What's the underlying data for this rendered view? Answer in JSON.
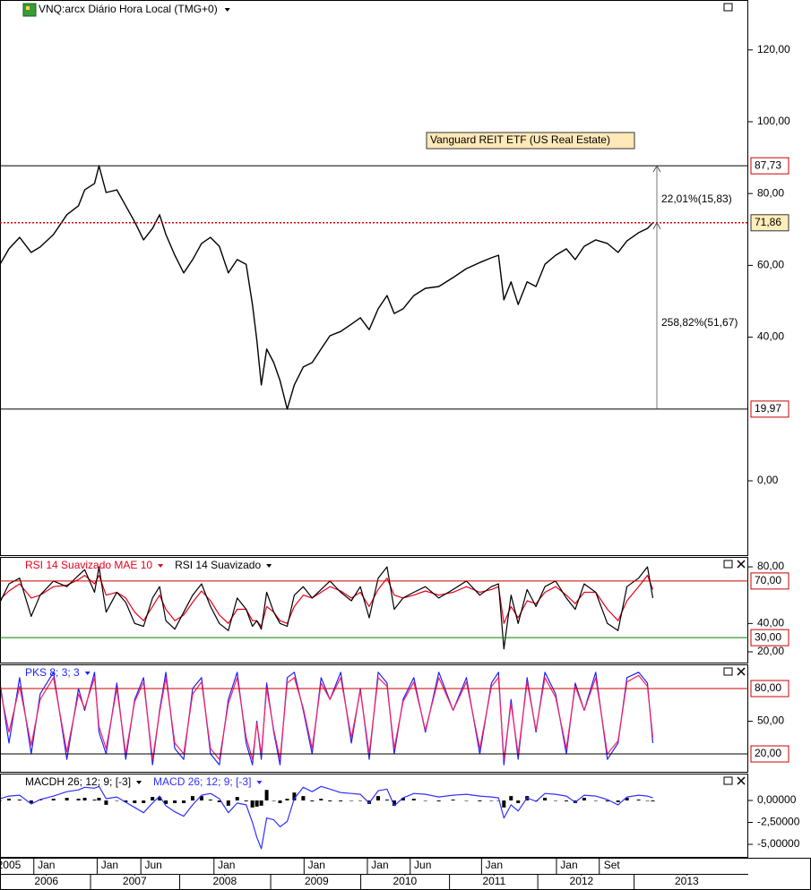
{
  "chart_data": [
    {
      "type": "line",
      "title": "VNQ:arcx Diário Hora Local (TMG+0)",
      "annotations": [
        "22,01%(15,83)",
        "258,82%(51,67)",
        "Vanguard REIT ETF  (US Real Estate)"
      ],
      "xlim": [
        2005.97,
        2014.36
      ],
      "ylim": [
        -20.7,
        133.9
      ],
      "yticks": [
        {
          "value": 0,
          "label": "0,00"
        },
        {
          "value": 40,
          "label": "40,00"
        },
        {
          "value": 60,
          "label": "60,00"
        },
        {
          "value": 80,
          "label": "80,00"
        },
        {
          "value": 100,
          "label": "100,00"
        },
        {
          "value": 120,
          "label": "120,00"
        }
      ],
      "levels": [
        {
          "value": 87.73,
          "label": "87,73",
          "color": "#000000",
          "box": "#cc0000",
          "fill": "#ffffff"
        },
        {
          "value": 71.86,
          "label": "71,86",
          "color": "#dd0000",
          "box": "#333333",
          "fill": "#ffeebb",
          "dash": true
        },
        {
          "value": 19.97,
          "label": "19,97",
          "color": "#000000",
          "box": "#cc0000",
          "fill": "#ffffff"
        }
      ],
      "x": [
        2005.97,
        2006.07,
        2006.19,
        2006.32,
        2006.42,
        2006.57,
        2006.72,
        2006.85,
        2006.92,
        2007.03,
        2007.08,
        2007.16,
        2007.28,
        2007.38,
        2007.48,
        2007.58,
        2007.68,
        2007.76,
        2007.83,
        2007.93,
        2008.03,
        2008.13,
        2008.23,
        2008.33,
        2008.43,
        2008.53,
        2008.63,
        2008.73,
        2008.8,
        2008.85,
        2008.9,
        2008.96,
        2009.04,
        2009.11,
        2009.19,
        2009.27,
        2009.37,
        2009.47,
        2009.57,
        2009.67,
        2009.79,
        2009.91,
        2010.01,
        2010.11,
        2010.21,
        2010.31,
        2010.39,
        2010.49,
        2010.61,
        2010.74,
        2010.89,
        2011.05,
        2011.2,
        2011.35,
        2011.48,
        2011.56,
        2011.62,
        2011.7,
        2011.78,
        2011.88,
        2011.98,
        2012.08,
        2012.2,
        2012.32,
        2012.42,
        2012.52,
        2012.65,
        2012.78,
        2012.9,
        2013.0,
        2013.13,
        2013.23,
        2013.29
      ],
      "series": [
        {
          "color": "#000000",
          "values": [
            60.3,
            64.6,
            67.8,
            63.6,
            65.1,
            68.6,
            74.1,
            76.6,
            81.0,
            82.8,
            87.73,
            80.3,
            81.0,
            76.6,
            72.1,
            67.1,
            70.3,
            74.1,
            68.6,
            62.8,
            57.9,
            61.6,
            66.1,
            67.8,
            65.3,
            57.9,
            61.6,
            60.3,
            49.1,
            39.2,
            26.7,
            36.7,
            32.9,
            27.9,
            19.97,
            26.7,
            31.7,
            32.9,
            36.7,
            40.4,
            41.6,
            43.6,
            45.4,
            42.1,
            47.9,
            51.6,
            46.6,
            47.9,
            51.6,
            53.6,
            54.1,
            56.6,
            59.1,
            60.8,
            62.1,
            62.8,
            50.4,
            55.4,
            49.1,
            55.4,
            54.1,
            60.3,
            62.8,
            64.6,
            61.6,
            65.3,
            67.1,
            66.1,
            63.6,
            66.8,
            69.1,
            70.3,
            71.86
          ]
        }
      ]
    },
    {
      "type": "line",
      "xlim": [
        2005.97,
        2014.36
      ],
      "ylim": [
        12.4,
        87.0
      ],
      "yticks": [
        {
          "value": 20,
          "label": "20,00"
        },
        {
          "value": 40,
          "label": "40,00"
        },
        {
          "value": 80,
          "label": "80,00"
        }
      ],
      "levels": [
        {
          "value": 70,
          "label": "70,00",
          "color": "#cc0000",
          "box": "#cc0000",
          "fill": "#ffffff"
        },
        {
          "value": 30,
          "label": "30,00",
          "color": "#008000",
          "box": "#cc0000",
          "fill": "#ffffff"
        }
      ],
      "x": [
        2005.97,
        2006.07,
        2006.19,
        2006.32,
        2006.42,
        2006.57,
        2006.72,
        2006.85,
        2006.92,
        2007.03,
        2007.08,
        2007.16,
        2007.28,
        2007.38,
        2007.48,
        2007.58,
        2007.68,
        2007.76,
        2007.83,
        2007.93,
        2008.03,
        2008.13,
        2008.23,
        2008.33,
        2008.43,
        2008.53,
        2008.63,
        2008.73,
        2008.8,
        2008.85,
        2008.9,
        2008.96,
        2009.04,
        2009.11,
        2009.19,
        2009.27,
        2009.37,
        2009.47,
        2009.57,
        2009.67,
        2009.79,
        2009.91,
        2010.01,
        2010.11,
        2010.21,
        2010.31,
        2010.39,
        2010.49,
        2010.61,
        2010.74,
        2010.89,
        2011.05,
        2011.2,
        2011.35,
        2011.48,
        2011.56,
        2011.62,
        2011.7,
        2011.78,
        2011.88,
        2011.98,
        2012.08,
        2012.2,
        2012.32,
        2012.42,
        2012.52,
        2012.65,
        2012.78,
        2012.9,
        2013.0,
        2013.13,
        2013.23,
        2013.29
      ],
      "series": [
        {
          "name": "RSI 14 Suavizado MAE 10",
          "color": "#e8001c",
          "values": [
            57,
            63,
            68,
            58,
            60,
            66,
            67,
            71,
            74,
            68,
            74,
            60,
            62,
            58,
            48,
            42,
            52,
            60,
            50,
            42,
            46,
            55,
            63,
            56,
            46,
            40,
            50,
            50,
            42,
            42,
            38,
            52,
            48,
            42,
            40,
            52,
            60,
            58,
            62,
            66,
            63,
            58,
            62,
            52,
            64,
            72,
            60,
            58,
            60,
            63,
            60,
            62,
            66,
            62,
            64,
            66,
            40,
            52,
            44,
            56,
            54,
            62,
            66,
            60,
            54,
            62,
            62,
            50,
            42,
            56,
            66,
            74,
            64
          ]
        },
        {
          "name": "RSI 14 Suavizado",
          "color": "#000000",
          "values": [
            55,
            68,
            72,
            45,
            60,
            70,
            66,
            74,
            78,
            62,
            80,
            48,
            62,
            55,
            40,
            38,
            58,
            66,
            42,
            36,
            48,
            60,
            68,
            52,
            40,
            35,
            58,
            50,
            38,
            42,
            36,
            62,
            48,
            40,
            38,
            60,
            66,
            58,
            64,
            70,
            62,
            56,
            66,
            44,
            72,
            80,
            50,
            58,
            62,
            66,
            58,
            64,
            70,
            60,
            66,
            68,
            22,
            60,
            40,
            64,
            52,
            66,
            70,
            58,
            50,
            68,
            62,
            40,
            35,
            66,
            72,
            80,
            58
          ]
        }
      ]
    },
    {
      "type": "line",
      "xlim": [
        2005.97,
        2014.36
      ],
      "ylim": [
        3.6,
        102.2
      ],
      "yticks": [
        {
          "value": 50,
          "label": "50,00"
        }
      ],
      "levels": [
        {
          "value": 80,
          "label": "80,00",
          "color": "#cc0000",
          "box": "#cc0000",
          "fill": "#ffffff"
        },
        {
          "value": 20,
          "label": "20,00",
          "color": "#000000",
          "box": "#cc0000",
          "fill": "#ffffff"
        }
      ],
      "x": [
        2005.97,
        2006.07,
        2006.19,
        2006.32,
        2006.42,
        2006.57,
        2006.72,
        2006.85,
        2006.92,
        2007.03,
        2007.08,
        2007.16,
        2007.28,
        2007.38,
        2007.48,
        2007.58,
        2007.68,
        2007.76,
        2007.83,
        2007.93,
        2008.03,
        2008.13,
        2008.23,
        2008.33,
        2008.43,
        2008.53,
        2008.63,
        2008.73,
        2008.8,
        2008.85,
        2008.9,
        2008.96,
        2009.04,
        2009.11,
        2009.19,
        2009.27,
        2009.37,
        2009.47,
        2009.57,
        2009.67,
        2009.79,
        2009.91,
        2010.01,
        2010.11,
        2010.21,
        2010.31,
        2010.39,
        2010.49,
        2010.61,
        2010.74,
        2010.89,
        2011.05,
        2011.2,
        2011.35,
        2011.48,
        2011.56,
        2011.62,
        2011.7,
        2011.78,
        2011.88,
        2011.98,
        2012.08,
        2012.2,
        2012.32,
        2012.42,
        2012.52,
        2012.65,
        2012.78,
        2012.9,
        2013.0,
        2013.13,
        2013.23,
        2013.29
      ],
      "series": [
        {
          "name": "PKS 8; 3; 3",
          "color": "#2020ff",
          "values": [
            85,
            30,
            90,
            20,
            75,
            95,
            15,
            80,
            60,
            95,
            40,
            20,
            85,
            15,
            70,
            90,
            10,
            60,
            95,
            25,
            15,
            80,
            90,
            20,
            10,
            70,
            95,
            30,
            10,
            50,
            15,
            85,
            40,
            10,
            90,
            95,
            60,
            20,
            90,
            70,
            95,
            30,
            80,
            15,
            95,
            85,
            20,
            70,
            90,
            40,
            95,
            60,
            90,
            20,
            85,
            95,
            10,
            70,
            15,
            90,
            40,
            95,
            75,
            20,
            85,
            60,
            95,
            15,
            30,
            90,
            95,
            85,
            30
          ]
        },
        {
          "color": "#ff2060",
          "values": [
            80,
            40,
            82,
            28,
            70,
            90,
            22,
            75,
            62,
            90,
            45,
            25,
            80,
            20,
            68,
            86,
            15,
            58,
            90,
            30,
            20,
            75,
            86,
            25,
            15,
            66,
            90,
            35,
            15,
            48,
            20,
            80,
            42,
            15,
            85,
            90,
            62,
            25,
            85,
            70,
            90,
            35,
            78,
            20,
            90,
            82,
            25,
            68,
            86,
            42,
            90,
            60,
            86,
            25,
            82,
            90,
            15,
            66,
            20,
            86,
            42,
            90,
            72,
            25,
            82,
            60,
            90,
            20,
            32,
            86,
            92,
            82,
            35
          ]
        }
      ]
    },
    {
      "type": "line",
      "xlim": [
        2005.97,
        2014.36
      ],
      "ylim": [
        -6.53,
        3.06
      ],
      "yticks": [
        {
          "value": -5,
          "label": "-5,00000"
        },
        {
          "value": -2.5,
          "label": "-2,50000"
        },
        {
          "value": 0,
          "label": "0,00000"
        }
      ],
      "xticks": [
        {
          "value": 2006.07,
          "label": "2005"
        },
        {
          "value": 2006.49,
          "label": "Jan"
        },
        {
          "value": 2007.2,
          "label": "Jan"
        },
        {
          "value": 2007.69,
          "label": "Jun"
        },
        {
          "value": 2008.51,
          "label": "Jan"
        },
        {
          "value": 2009.52,
          "label": "Jan"
        },
        {
          "value": 2010.23,
          "label": "Jan"
        },
        {
          "value": 2010.71,
          "label": "Jun"
        },
        {
          "value": 2011.51,
          "label": "Jan"
        },
        {
          "value": 2012.35,
          "label": "Jan"
        },
        {
          "value": 2012.83,
          "label": "Set"
        }
      ],
      "year_ticks": [
        {
          "value": 2006.49,
          "label": "2006"
        },
        {
          "value": 2007.48,
          "label": "2007"
        },
        {
          "value": 2008.49,
          "label": "2008"
        },
        {
          "value": 2009.52,
          "label": "2009"
        },
        {
          "value": 2010.51,
          "label": "2010"
        },
        {
          "value": 2011.51,
          "label": "2011"
        },
        {
          "value": 2012.49,
          "label": "2012"
        },
        {
          "value": 2013.67,
          "label": "2013"
        }
      ],
      "x": [
        2005.97,
        2006.07,
        2006.19,
        2006.32,
        2006.42,
        2006.57,
        2006.72,
        2006.85,
        2006.92,
        2007.03,
        2007.08,
        2007.16,
        2007.28,
        2007.38,
        2007.48,
        2007.58,
        2007.68,
        2007.76,
        2007.83,
        2007.93,
        2008.03,
        2008.13,
        2008.23,
        2008.33,
        2008.43,
        2008.53,
        2008.63,
        2008.73,
        2008.8,
        2008.85,
        2008.9,
        2008.96,
        2009.04,
        2009.11,
        2009.19,
        2009.27,
        2009.37,
        2009.47,
        2009.57,
        2009.67,
        2009.79,
        2009.91,
        2010.01,
        2010.11,
        2010.21,
        2010.31,
        2010.39,
        2010.49,
        2010.61,
        2010.74,
        2010.89,
        2011.05,
        2011.2,
        2011.35,
        2011.48,
        2011.56,
        2011.62,
        2011.7,
        2011.78,
        2011.88,
        2011.98,
        2012.08,
        2012.2,
        2012.32,
        2012.42,
        2012.52,
        2012.65,
        2012.78,
        2012.9,
        2013.0,
        2013.13,
        2013.23,
        2013.29
      ],
      "series": [
        {
          "name": "MACDH 26; 12; 9; [-3]",
          "color": "#000000",
          "type": "bar",
          "values": [
            0.0,
            0.2,
            0.1,
            -0.3,
            0.1,
            0.2,
            0.3,
            0.2,
            0.3,
            0.1,
            0.3,
            -0.5,
            0.0,
            -0.2,
            -0.3,
            -0.3,
            0.4,
            0.4,
            -0.4,
            -0.3,
            -0.3,
            0.5,
            0.5,
            0.1,
            -0.2,
            -0.6,
            0.4,
            -0.1,
            -0.8,
            -0.7,
            -0.6,
            1.2,
            0.0,
            -0.3,
            0.2,
            0.9,
            0.5,
            -0.1,
            0.2,
            -0.1,
            -0.1,
            0.0,
            0.0,
            -0.4,
            0.5,
            0.1,
            -0.6,
            0.3,
            0.2,
            0.0,
            -0.1,
            0.1,
            0.0,
            -0.1,
            0.0,
            0.0,
            -0.8,
            0.5,
            -0.3,
            0.5,
            -0.1,
            0.3,
            0.0,
            -0.1,
            -0.3,
            0.3,
            0.0,
            -0.1,
            -0.2,
            0.3,
            0.1,
            0.0,
            -0.1
          ]
        },
        {
          "name": "MACD 26; 12; 9; [-3]",
          "color": "#3030ff",
          "values": [
            0.2,
            0.5,
            0.6,
            -0.4,
            0.1,
            0.5,
            1.0,
            1.2,
            1.5,
            1.4,
            1.6,
            0.2,
            0.4,
            -0.2,
            -0.8,
            -1.4,
            -0.3,
            0.5,
            -0.6,
            -1.3,
            -1.8,
            -0.5,
            0.6,
            0.8,
            0.2,
            -1.4,
            -0.3,
            -0.5,
            -2.5,
            -4.2,
            -5.5,
            -2.0,
            -2.2,
            -3.0,
            -2.4,
            0.2,
            1.5,
            1.0,
            1.6,
            1.3,
            0.9,
            0.8,
            0.7,
            -0.3,
            1.1,
            1.3,
            -0.6,
            0.3,
            0.8,
            0.7,
            0.4,
            0.6,
            0.7,
            0.5,
            0.4,
            0.3,
            -2.0,
            -0.5,
            -1.2,
            0.3,
            -0.1,
            0.8,
            0.7,
            0.5,
            -0.2,
            0.6,
            0.5,
            0.1,
            -0.5,
            0.4,
            0.6,
            0.5,
            0.3
          ]
        }
      ]
    }
  ]
}
